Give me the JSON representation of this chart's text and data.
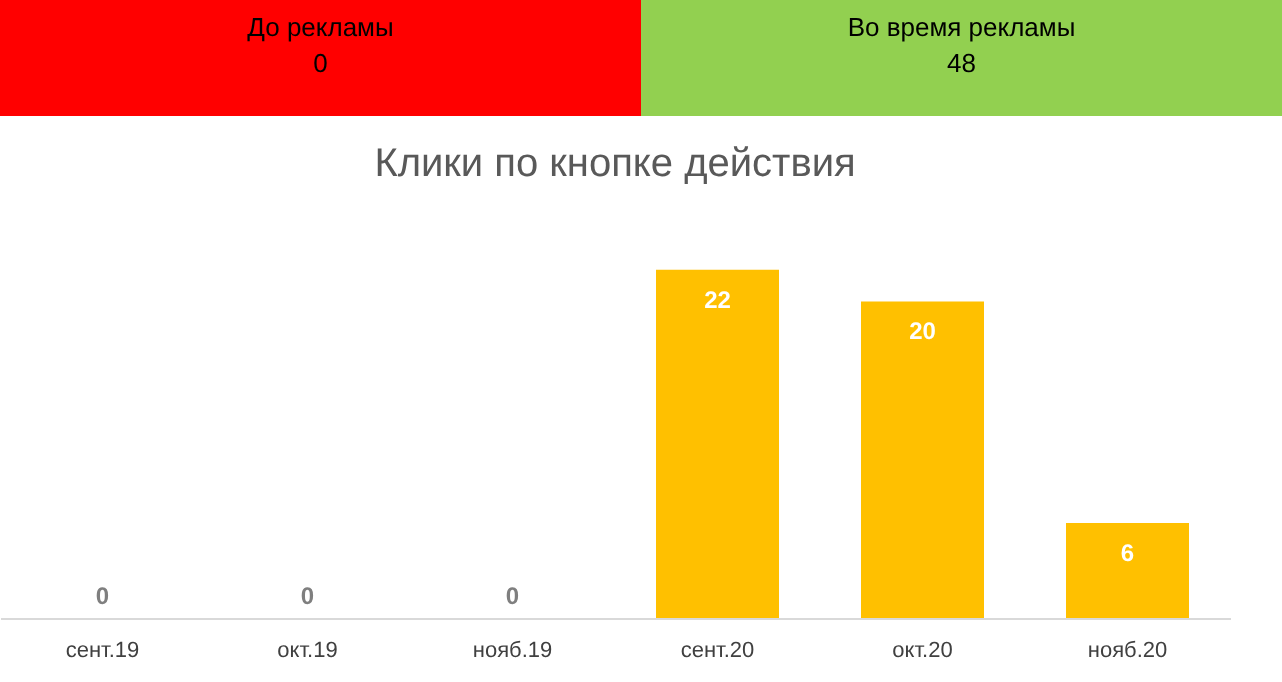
{
  "chart_data": [
    {
      "type": "other",
      "categories": [
        "До рекламы",
        "Во время рекламы"
      ],
      "values": [
        0,
        48
      ],
      "colors": [
        "#ff0000",
        "#92d050"
      ],
      "data_labels": true
    },
    {
      "type": "bar",
      "title": "Клики по кнопке действия",
      "categories": [
        "сент.19",
        "окт.19",
        "нояб.19",
        "сент.20",
        "окт.20",
        "нояб.20"
      ],
      "values": [
        0,
        0,
        0,
        22,
        20,
        6
      ],
      "color": "#ffc000",
      "data_labels": true,
      "grid": false
    }
  ]
}
